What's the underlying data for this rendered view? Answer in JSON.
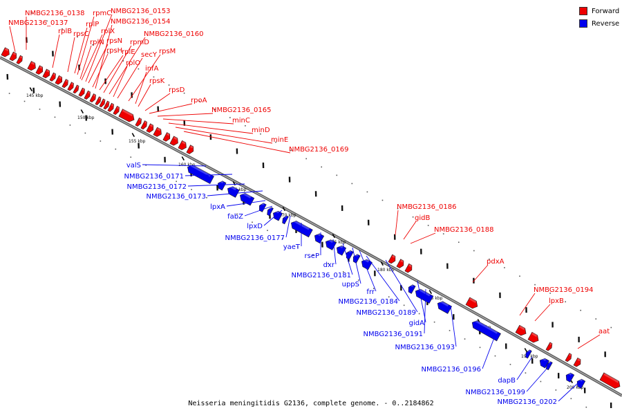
{
  "colors": {
    "forward": "#ee0000",
    "reverse": "#0000ee",
    "backbone": "#777777"
  },
  "legend": [
    {
      "label": "Forward",
      "color": "#ee0000"
    },
    {
      "label": "Reverse",
      "color": "#0000ee"
    }
  ],
  "caption": "Neisseria meningitidis G2136, complete genome. - 0..2184862",
  "ticks": [
    "145 kbp",
    "150 kbp",
    "155 kbp",
    "160 kbp",
    "165 kbp",
    "170 kbp",
    "175 kbp",
    "180 kbp",
    "185 kbp",
    "190 kbp",
    "195 kbp",
    "200 kbp"
  ],
  "forward_labels": [
    "NMBG2136_0138",
    "NMBG2136_0137",
    "rplB",
    "rpsC",
    "rplP",
    "rpmC",
    "rplN",
    "rplX",
    "NMBG2136_0153",
    "rpsN",
    "rpsH",
    "NMBG2136_0154",
    "rplE",
    "rpmD",
    "NMBG2136_0160",
    "rplO",
    "secY",
    "rpsM",
    "infA",
    "rpsK",
    "rpsD",
    "rpoA",
    "NMBG2136_0165",
    "minC",
    "minD",
    "minE",
    "NMBG2136_0169",
    "NMBG2136_0186",
    "gidB",
    "NMBG2136_0188",
    "pdxA",
    "NMBG2136_0194",
    "lpxB",
    "aat"
  ],
  "reverse_labels": [
    "valS",
    "NMBG2136_0171",
    "NMBG2136_0172",
    "NMBG2136_0173",
    "lpxA",
    "fabZ",
    "lpxD",
    "NMBG2136_0177",
    "yaeT",
    "rseP",
    "dxr",
    "NMBG2136_0181",
    "uppS",
    "frr",
    "NMBG2136_0184",
    "NMBG2136_0189",
    "gidA",
    "NMBG2136_0191",
    "NMBG2136_0193",
    "NMBG2136_0196",
    "dapB",
    "NMBG2136_0199",
    "NMBG2136_0202"
  ]
}
